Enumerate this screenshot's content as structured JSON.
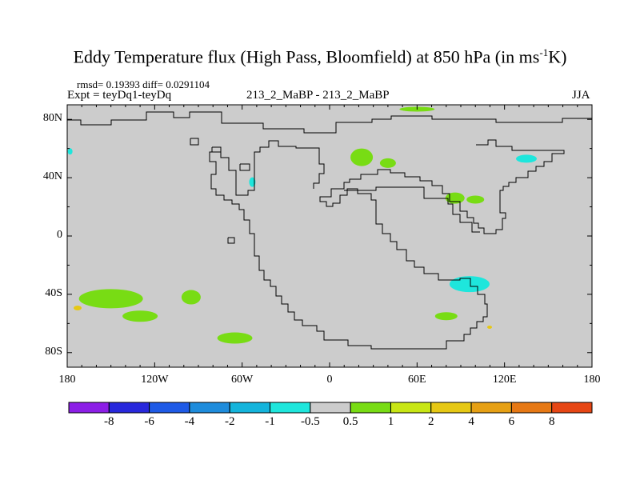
{
  "title": {
    "main": "Eddy Temperature flux (High Pass, Bloomfield) at 850 hPa (in ms",
    "sup": "-1",
    "tail": "K)"
  },
  "subtitle": {
    "stats": "rmsd= 0.19393 diff= 0.0291104",
    "expt": "Expt = teyDq1-teyDq",
    "center": "213_2_MaBP - 213_2_MaBP",
    "season": "JJA"
  },
  "axes": {
    "lat_labels": [
      "80N",
      "40N",
      "0",
      "40S",
      "80S"
    ],
    "lon_labels": [
      "180",
      "120W",
      "60W",
      "0",
      "60E",
      "120E",
      "180"
    ]
  },
  "colorbar": {
    "labels": [
      "-8",
      "-6",
      "-4",
      "-2",
      "-1",
      "-0.5",
      "0.5",
      "1",
      "2",
      "4",
      "6",
      "8"
    ],
    "colors": [
      "#8c1ee6",
      "#2828dc",
      "#1e5ae6",
      "#1e8cdc",
      "#14b4dc",
      "#1ee6dc",
      "#cccccc",
      "#78dc14",
      "#c8e614",
      "#e6c814",
      "#e6a014",
      "#e67814",
      "#e64614"
    ]
  },
  "chart_data": {
    "type": "heatmap",
    "title": "Eddy Temperature flux (High Pass, Bloomfield) at 850 hPa (in ms-1K)",
    "xlim": [
      -180,
      180
    ],
    "ylim": [
      -90,
      90
    ],
    "background_color": "#cccccc",
    "contour_levels": [
      -8,
      -6,
      -4,
      -2,
      -1,
      -0.5,
      0.5,
      1,
      2,
      4,
      6,
      8
    ],
    "features": [
      {
        "lon": 22,
        "lat": 54,
        "level": "0.5 to 1",
        "color": "#78dc14"
      },
      {
        "lon": 40,
        "lat": 50,
        "level": "0.5 to 1",
        "color": "#78dc14"
      },
      {
        "lon": 86,
        "lat": 26,
        "level": "0.5 to 1",
        "color": "#78dc14"
      },
      {
        "lon": 100,
        "lat": 25,
        "level": "0.5 to 1",
        "color": "#78dc14"
      },
      {
        "lon": 60,
        "lat": 87,
        "level": "0.5 to 1",
        "color": "#78dc14"
      },
      {
        "lon": -150,
        "lat": -43,
        "level": "0.5 to 1",
        "color": "#78dc14"
      },
      {
        "lon": -95,
        "lat": -42,
        "level": "0.5 to 1",
        "color": "#78dc14"
      },
      {
        "lon": -130,
        "lat": -55,
        "level": "0.5 to 1",
        "color": "#78dc14"
      },
      {
        "lon": -65,
        "lat": -70,
        "level": "0.5 to 1",
        "color": "#78dc14"
      },
      {
        "lon": 80,
        "lat": -55,
        "level": "0.5 to 1",
        "color": "#78dc14"
      },
      {
        "lon": 96,
        "lat": -33,
        "level": "-1 to -0.5",
        "color": "#1ee6dc"
      },
      {
        "lon": 135,
        "lat": 53,
        "level": "-1 to -0.5",
        "color": "#1ee6dc"
      },
      {
        "lon": -178,
        "lat": 58,
        "level": "-1 to -0.5",
        "color": "#1ee6dc"
      },
      {
        "lon": -53,
        "lat": 37,
        "level": "-1 to -0.5",
        "color": "#1ee6dc"
      }
    ]
  }
}
